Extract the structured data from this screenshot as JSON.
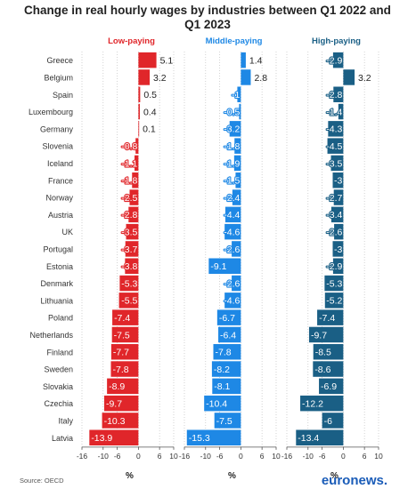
{
  "chart_data": {
    "type": "bar",
    "title": "Change in real hourly wages by industries between Q1 2022 and Q1 2023",
    "categories": [
      "Greece",
      "Belgium",
      "Spain",
      "Luxembourg",
      "Germany",
      "Slovenia",
      "Iceland",
      "France",
      "Norway",
      "Austria",
      "UK",
      "Portugal",
      "Estonia",
      "Denmark",
      "Lithuania",
      "Poland",
      "Netherlands",
      "Finland",
      "Sweden",
      "Slovakia",
      "Czechia",
      "Italy",
      "Latvia"
    ],
    "series": [
      {
        "name": "Low-paying",
        "color": "#e0262a",
        "values": [
          5.1,
          3.2,
          0.5,
          0.4,
          0.1,
          -0.8,
          -1.1,
          -1.8,
          -2.5,
          -2.8,
          -3.5,
          -3.7,
          -3.8,
          -5.3,
          -5.5,
          -7.4,
          -7.5,
          -7.7,
          -7.8,
          -8.9,
          -9.7,
          -10.3,
          -13.9
        ]
      },
      {
        "name": "Middle-paying",
        "color": "#1e88e5",
        "values": [
          1.4,
          2.8,
          -1,
          -0.5,
          -3.2,
          -1.8,
          -1.9,
          -1.5,
          -2.4,
          -4.4,
          -4.6,
          -2.6,
          -9.1,
          -2.6,
          -4.6,
          -6.7,
          -6.4,
          -7.8,
          -8.2,
          -8.1,
          -10.4,
          -7.5,
          -15.3
        ]
      },
      {
        "name": "High-paying",
        "color": "#1a5f85",
        "values": [
          -2.9,
          3.2,
          -2.8,
          -1.4,
          -4.3,
          -4.5,
          -3.5,
          -3,
          -2.7,
          -3.4,
          -2.6,
          -3,
          -2.9,
          -5.3,
          -5.2,
          -7.4,
          -9.7,
          -8.5,
          -8.6,
          -6.9,
          -12.2,
          -6,
          -13.4
        ]
      }
    ],
    "xlim": [
      -16,
      10
    ],
    "xticks": [
      "-16",
      "-10",
      "-6",
      "0",
      "6",
      "10"
    ],
    "xlabel": "%",
    "source": "Source: OECD"
  },
  "logo": "euronews."
}
